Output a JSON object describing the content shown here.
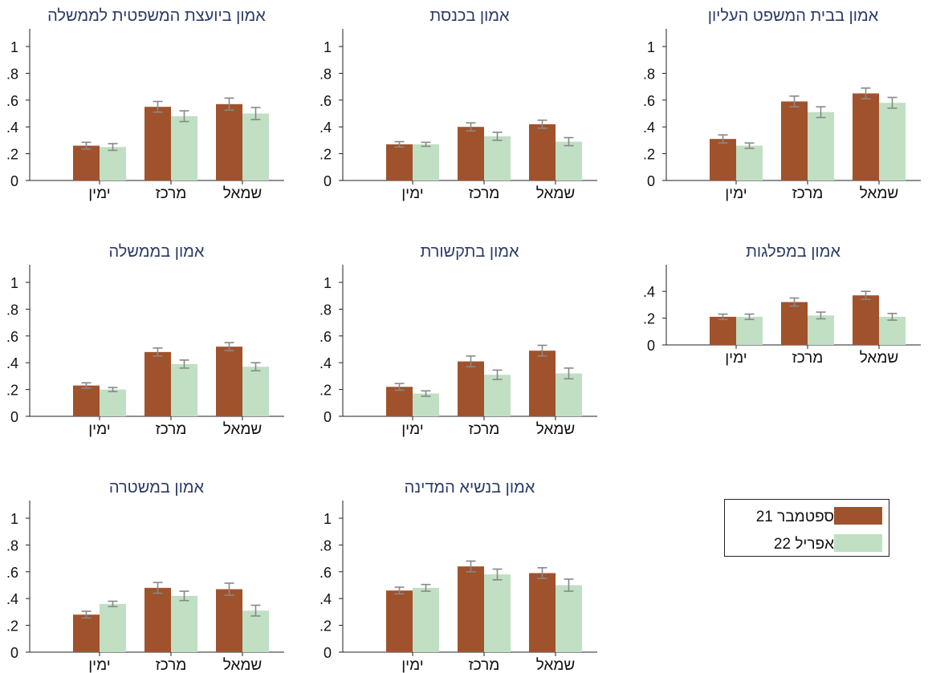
{
  "colors": {
    "sep21": "#a0522d",
    "apr22": "#c0dfc3",
    "error": "#888888",
    "title": "#2b3a67",
    "axis": "#222222"
  },
  "legend": {
    "items": [
      {
        "label": "ספטמבר 21",
        "color": "#a0522d"
      },
      {
        "label": "אפריל 22",
        "color": "#c0dfc3"
      }
    ]
  },
  "chart_data": [
    {
      "type": "bar",
      "title": "אמון בבית המשפט העליון",
      "categories": [
        "ימין",
        "מרכז",
        "שמאל"
      ],
      "yticks": [
        "0",
        ".2",
        ".4",
        ".6",
        ".8",
        "1"
      ],
      "ylim": [
        0,
        1.1
      ],
      "series": [
        {
          "name": "ספטמבר 21",
          "values": [
            0.31,
            0.59,
            0.65
          ],
          "err": [
            0.03,
            0.04,
            0.04
          ]
        },
        {
          "name": "אפריל 22",
          "values": [
            0.26,
            0.51,
            0.58
          ],
          "err": [
            0.02,
            0.04,
            0.04
          ]
        }
      ]
    },
    {
      "type": "bar",
      "title": "אמון בכנסת",
      "categories": [
        "ימין",
        "מרכז",
        "שמאל"
      ],
      "yticks": [
        "0",
        ".2",
        ".4",
        ".6",
        ".8",
        "1"
      ],
      "ylim": [
        0,
        1.1
      ],
      "series": [
        {
          "name": "ספטמבר 21",
          "values": [
            0.27,
            0.4,
            0.42
          ],
          "err": [
            0.02,
            0.03,
            0.03
          ]
        },
        {
          "name": "אפריל 22",
          "values": [
            0.27,
            0.33,
            0.29
          ],
          "err": [
            0.015,
            0.03,
            0.03
          ]
        }
      ]
    },
    {
      "type": "bar",
      "title": "אמון ביועצת המשפטית לממשלה",
      "categories": [
        "ימין",
        "מרכז",
        "שמאל"
      ],
      "yticks": [
        "0",
        ".2",
        ".4",
        ".6",
        ".8",
        "1"
      ],
      "ylim": [
        0,
        1.1
      ],
      "series": [
        {
          "name": "ספטמבר 21",
          "values": [
            0.26,
            0.55,
            0.57
          ],
          "err": [
            0.025,
            0.04,
            0.045
          ]
        },
        {
          "name": "אפריל 22",
          "values": [
            0.25,
            0.48,
            0.5
          ],
          "err": [
            0.025,
            0.04,
            0.045
          ]
        }
      ]
    },
    {
      "type": "bar",
      "title": "אמון במפלגות",
      "categories": [
        "ימין",
        "מרכז",
        "שמאל"
      ],
      "yticks": [
        "0",
        ".2",
        ".4"
      ],
      "ylim": [
        0,
        0.6
      ],
      "series": [
        {
          "name": "ספטמבר 21",
          "values": [
            0.21,
            0.32,
            0.37
          ],
          "err": [
            0.02,
            0.03,
            0.03
          ]
        },
        {
          "name": "אפריל 22",
          "values": [
            0.21,
            0.22,
            0.21
          ],
          "err": [
            0.02,
            0.025,
            0.025
          ]
        }
      ]
    },
    {
      "type": "bar",
      "title": "אמון בתקשורת",
      "categories": [
        "ימין",
        "מרכז",
        "שמאל"
      ],
      "yticks": [
        "0",
        ".2",
        ".4",
        ".6",
        ".8",
        "1"
      ],
      "ylim": [
        0,
        1.1
      ],
      "series": [
        {
          "name": "ספטמבר 21",
          "values": [
            0.22,
            0.41,
            0.49
          ],
          "err": [
            0.025,
            0.04,
            0.04
          ]
        },
        {
          "name": "אפריל 22",
          "values": [
            0.17,
            0.31,
            0.32
          ],
          "err": [
            0.02,
            0.035,
            0.04
          ]
        }
      ]
    },
    {
      "type": "bar",
      "title": "אמון בממשלה",
      "categories": [
        "ימין",
        "מרכז",
        "שמאל"
      ],
      "yticks": [
        "0",
        ".2",
        ".4",
        ".6",
        ".8",
        "1"
      ],
      "ylim": [
        0,
        1.1
      ],
      "series": [
        {
          "name": "ספטמבר 21",
          "values": [
            0.23,
            0.48,
            0.52
          ],
          "err": [
            0.02,
            0.03,
            0.03
          ]
        },
        {
          "name": "אפריל 22",
          "values": [
            0.2,
            0.39,
            0.37
          ],
          "err": [
            0.015,
            0.03,
            0.03
          ]
        }
      ]
    },
    {
      "type": "bar",
      "title": "אמון בנשיא המדינה",
      "categories": [
        "ימין",
        "מרכז",
        "שמאל"
      ],
      "yticks": [
        "0",
        ".2",
        ".4",
        ".6",
        ".8",
        "1"
      ],
      "ylim": [
        0,
        1.1
      ],
      "series": [
        {
          "name": "ספטמבר 21",
          "values": [
            0.46,
            0.64,
            0.59
          ],
          "err": [
            0.025,
            0.04,
            0.04
          ]
        },
        {
          "name": "אפריל 22",
          "values": [
            0.48,
            0.58,
            0.5
          ],
          "err": [
            0.025,
            0.04,
            0.045
          ]
        }
      ]
    },
    {
      "type": "bar",
      "title": "אמון במשטרה",
      "categories": [
        "ימין",
        "מרכז",
        "שמאל"
      ],
      "yticks": [
        "0",
        ".2",
        ".4",
        ".6",
        ".8",
        "1"
      ],
      "ylim": [
        0,
        1.1
      ],
      "series": [
        {
          "name": "ספטמבר 21",
          "values": [
            0.28,
            0.48,
            0.47
          ],
          "err": [
            0.025,
            0.04,
            0.045
          ]
        },
        {
          "name": "אפריל 22",
          "values": [
            0.36,
            0.42,
            0.31
          ],
          "err": [
            0.02,
            0.035,
            0.04
          ]
        }
      ]
    }
  ]
}
